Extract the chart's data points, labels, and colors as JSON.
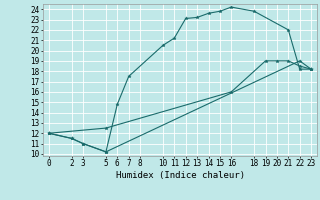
{
  "xlabel": "Humidex (Indice chaleur)",
  "bg_color": "#c0e8e8",
  "line_color": "#1a6b6b",
  "grid_color": "#ffffff",
  "xlim": [
    -0.5,
    23.5
  ],
  "ylim": [
    9.8,
    24.5
  ],
  "xticks": [
    0,
    2,
    3,
    5,
    6,
    7,
    8,
    10,
    11,
    12,
    13,
    14,
    15,
    16,
    18,
    19,
    20,
    21,
    22,
    23
  ],
  "yticks": [
    10,
    11,
    12,
    13,
    14,
    15,
    16,
    17,
    18,
    19,
    20,
    21,
    22,
    23,
    24
  ],
  "curve1_x": [
    0,
    2,
    3,
    5,
    6,
    7,
    10,
    11,
    12,
    13,
    14,
    15,
    16,
    18,
    21,
    22,
    23
  ],
  "curve1_y": [
    12,
    11.5,
    11,
    10.2,
    14.8,
    17.5,
    20.5,
    21.2,
    23.1,
    23.2,
    23.6,
    23.8,
    24.2,
    23.8,
    22,
    18.2,
    18.2
  ],
  "curve2_x": [
    0,
    2,
    3,
    5,
    22,
    23
  ],
  "curve2_y": [
    12,
    11.5,
    11,
    10.2,
    19,
    18.2
  ],
  "curve3_x": [
    0,
    5,
    16,
    19,
    20,
    21,
    22,
    23
  ],
  "curve3_y": [
    12,
    12.5,
    16,
    19,
    19,
    19,
    18.5,
    18.2
  ],
  "tick_fontsize": 5.5,
  "xlabel_fontsize": 6.5
}
